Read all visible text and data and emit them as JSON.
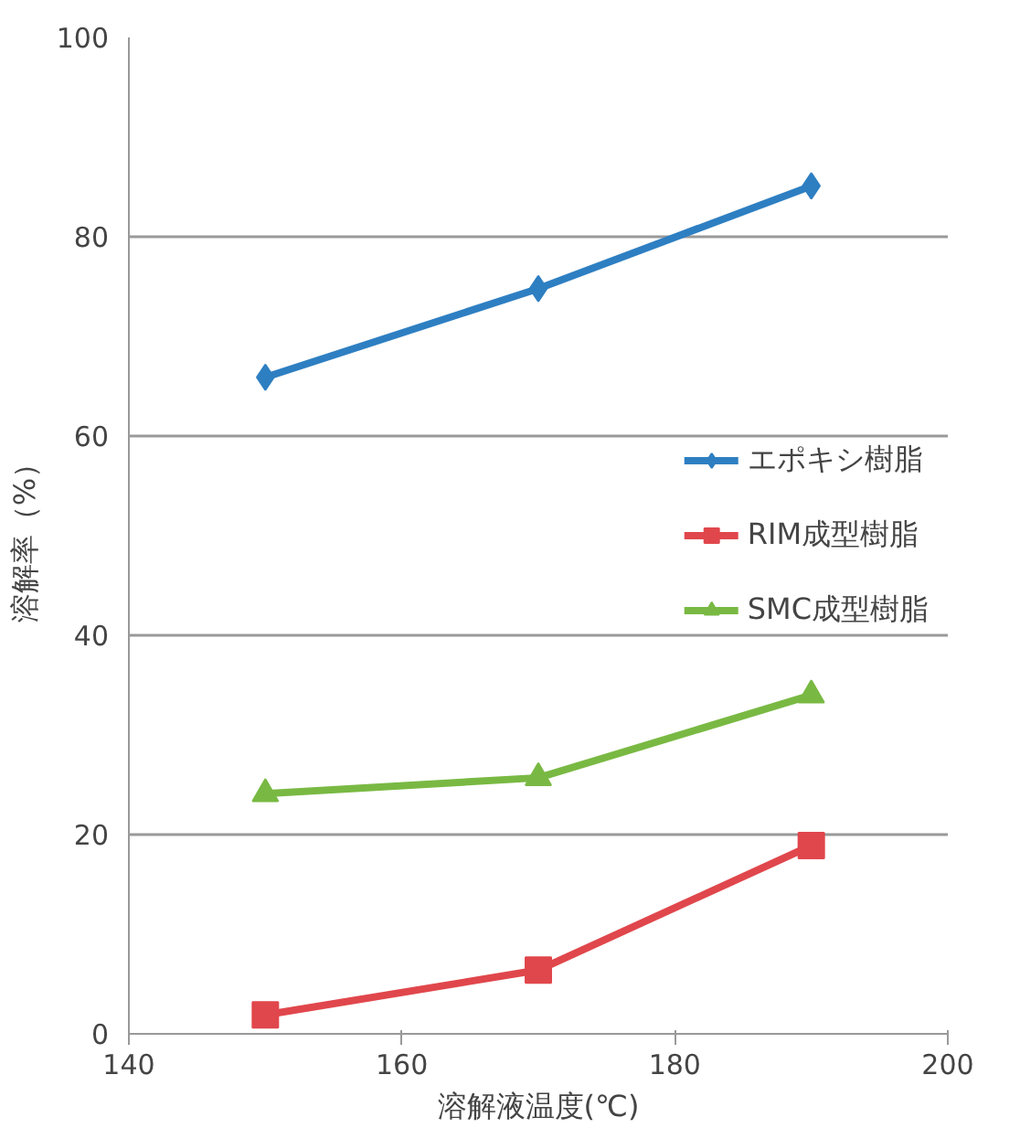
{
  "chart_data": {
    "type": "line",
    "xlabel": "溶解液温度(℃)",
    "ylabel": "溶解率（%）",
    "x": [
      150,
      170,
      190
    ],
    "series": [
      {
        "name": "エポキシ樹脂",
        "color": "#2e7fc2",
        "values": [
          65.9,
          74.8,
          85.1
        ],
        "marker": "diamond"
      },
      {
        "name": "RIM成型樹脂",
        "color": "#e0474c",
        "values": [
          1.9,
          6.4,
          18.9
        ],
        "marker": "square"
      },
      {
        "name": "SMC成型樹脂",
        "color": "#79b943",
        "values": [
          24.1,
          25.7,
          34.0
        ],
        "marker": "triangle"
      }
    ],
    "xlim": [
      140,
      200
    ],
    "xticks": [
      140,
      160,
      180,
      200
    ],
    "ylim": [
      0,
      100
    ],
    "yticks": [
      0,
      20,
      40,
      60,
      80,
      100
    ],
    "grid": "y",
    "legend": "right",
    "line_style": "solid"
  }
}
